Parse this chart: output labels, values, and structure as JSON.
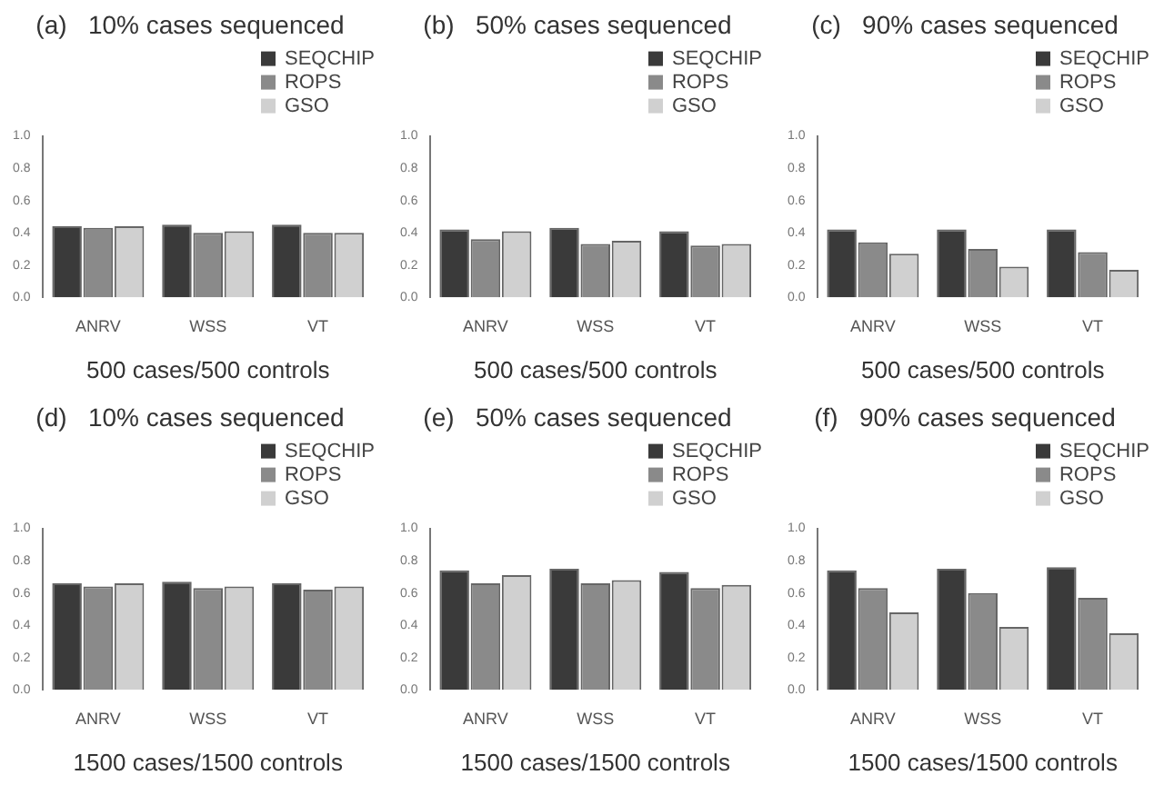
{
  "chart_data": [
    {
      "type": "bar",
      "title": "(a)   10% cases sequenced",
      "xlabel": "500 cases/500 controls",
      "categories": [
        "ANRV",
        "WSS",
        "VT"
      ],
      "series": [
        {
          "name": "SEQCHIP",
          "color": "#3a3a3a",
          "values": [
            0.44,
            0.45,
            0.45
          ]
        },
        {
          "name": "ROPS",
          "color": "#8a8a8a",
          "values": [
            0.43,
            0.4,
            0.4
          ]
        },
        {
          "name": "GSO",
          "color": "#d0d0d0",
          "values": [
            0.44,
            0.41,
            0.4
          ]
        }
      ],
      "ylim": [
        0,
        1
      ],
      "yticks": [
        {
          "value": 0,
          "label": "0.0"
        },
        {
          "value": 0.2,
          "label": "0.2"
        },
        {
          "value": 0.4,
          "label": "0.4"
        },
        {
          "value": 0.6,
          "label": "0.6"
        },
        {
          "value": 0.8,
          "label": "0.8"
        },
        {
          "value": 1,
          "label": "1.0"
        }
      ],
      "legend": "top right"
    },
    {
      "type": "bar",
      "title": "(b)   50% cases sequenced",
      "xlabel": "500 cases/500 controls",
      "categories": [
        "ANRV",
        "WSS",
        "VT"
      ],
      "series": [
        {
          "name": "SEQCHIP",
          "color": "#3a3a3a",
          "values": [
            0.42,
            0.43,
            0.41
          ]
        },
        {
          "name": "ROPS",
          "color": "#8a8a8a",
          "values": [
            0.36,
            0.33,
            0.32
          ]
        },
        {
          "name": "GSO",
          "color": "#d0d0d0",
          "values": [
            0.41,
            0.35,
            0.33
          ]
        }
      ],
      "ylim": [
        0,
        1
      ],
      "yticks": [
        {
          "value": 0,
          "label": "0.0"
        },
        {
          "value": 0.2,
          "label": "0.2"
        },
        {
          "value": 0.4,
          "label": "0.4"
        },
        {
          "value": 0.6,
          "label": "0.6"
        },
        {
          "value": 0.8,
          "label": "0.8"
        },
        {
          "value": 1,
          "label": "1.0"
        }
      ],
      "legend": "top right"
    },
    {
      "type": "bar",
      "title": "(c)   90% cases sequenced",
      "xlabel": "500 cases/500 controls",
      "categories": [
        "ANRV",
        "WSS",
        "VT"
      ],
      "series": [
        {
          "name": "SEQCHIP",
          "color": "#3a3a3a",
          "values": [
            0.42,
            0.42,
            0.42
          ]
        },
        {
          "name": "ROPS",
          "color": "#8a8a8a",
          "values": [
            0.34,
            0.3,
            0.28
          ]
        },
        {
          "name": "GSO",
          "color": "#d0d0d0",
          "values": [
            0.27,
            0.19,
            0.17
          ]
        }
      ],
      "ylim": [
        0,
        1
      ],
      "yticks": [
        {
          "value": 0,
          "label": "0.0"
        },
        {
          "value": 0.2,
          "label": "0.2"
        },
        {
          "value": 0.4,
          "label": "0.4"
        },
        {
          "value": 0.6,
          "label": "0.6"
        },
        {
          "value": 0.8,
          "label": "0.8"
        },
        {
          "value": 1,
          "label": "1.0"
        }
      ],
      "legend": "top right"
    },
    {
      "type": "bar",
      "title": "(d)   10% cases sequenced",
      "xlabel": "1500 cases/1500 controls",
      "categories": [
        "ANRV",
        "WSS",
        "VT"
      ],
      "series": [
        {
          "name": "SEQCHIP",
          "color": "#3a3a3a",
          "values": [
            0.66,
            0.67,
            0.66
          ]
        },
        {
          "name": "ROPS",
          "color": "#8a8a8a",
          "values": [
            0.64,
            0.63,
            0.62
          ]
        },
        {
          "name": "GSO",
          "color": "#d0d0d0",
          "values": [
            0.66,
            0.64,
            0.64
          ]
        }
      ],
      "ylim": [
        0,
        1
      ],
      "yticks": [
        {
          "value": 0,
          "label": "0.0"
        },
        {
          "value": 0.2,
          "label": "0.2"
        },
        {
          "value": 0.4,
          "label": "0.4"
        },
        {
          "value": 0.6,
          "label": "0.6"
        },
        {
          "value": 0.8,
          "label": "0.8"
        },
        {
          "value": 1,
          "label": "1.0"
        }
      ],
      "legend": "top right"
    },
    {
      "type": "bar",
      "title": "(e)   50% cases sequenced",
      "xlabel": "1500 cases/1500 controls",
      "categories": [
        "ANRV",
        "WSS",
        "VT"
      ],
      "series": [
        {
          "name": "SEQCHIP",
          "color": "#3a3a3a",
          "values": [
            0.74,
            0.75,
            0.73
          ]
        },
        {
          "name": "ROPS",
          "color": "#8a8a8a",
          "values": [
            0.66,
            0.66,
            0.63
          ]
        },
        {
          "name": "GSO",
          "color": "#d0d0d0",
          "values": [
            0.71,
            0.68,
            0.65
          ]
        }
      ],
      "ylim": [
        0,
        1
      ],
      "yticks": [
        {
          "value": 0,
          "label": "0.0"
        },
        {
          "value": 0.2,
          "label": "0.2"
        },
        {
          "value": 0.4,
          "label": "0.4"
        },
        {
          "value": 0.6,
          "label": "0.6"
        },
        {
          "value": 0.8,
          "label": "0.8"
        },
        {
          "value": 1,
          "label": "1.0"
        }
      ],
      "legend": "top right"
    },
    {
      "type": "bar",
      "title": "(f)   90% cases sequenced",
      "xlabel": "1500 cases/1500 controls",
      "categories": [
        "ANRV",
        "WSS",
        "VT"
      ],
      "series": [
        {
          "name": "SEQCHIP",
          "color": "#3a3a3a",
          "values": [
            0.74,
            0.75,
            0.76
          ]
        },
        {
          "name": "ROPS",
          "color": "#8a8a8a",
          "values": [
            0.63,
            0.6,
            0.57
          ]
        },
        {
          "name": "GSO",
          "color": "#d0d0d0",
          "values": [
            0.48,
            0.39,
            0.35
          ]
        }
      ],
      "ylim": [
        0,
        1
      ],
      "yticks": [
        {
          "value": 0,
          "label": "0.0"
        },
        {
          "value": 0.2,
          "label": "0.2"
        },
        {
          "value": 0.4,
          "label": "0.4"
        },
        {
          "value": 0.6,
          "label": "0.6"
        },
        {
          "value": 0.8,
          "label": "0.8"
        },
        {
          "value": 1,
          "label": "1.0"
        }
      ],
      "legend": "top right"
    }
  ]
}
